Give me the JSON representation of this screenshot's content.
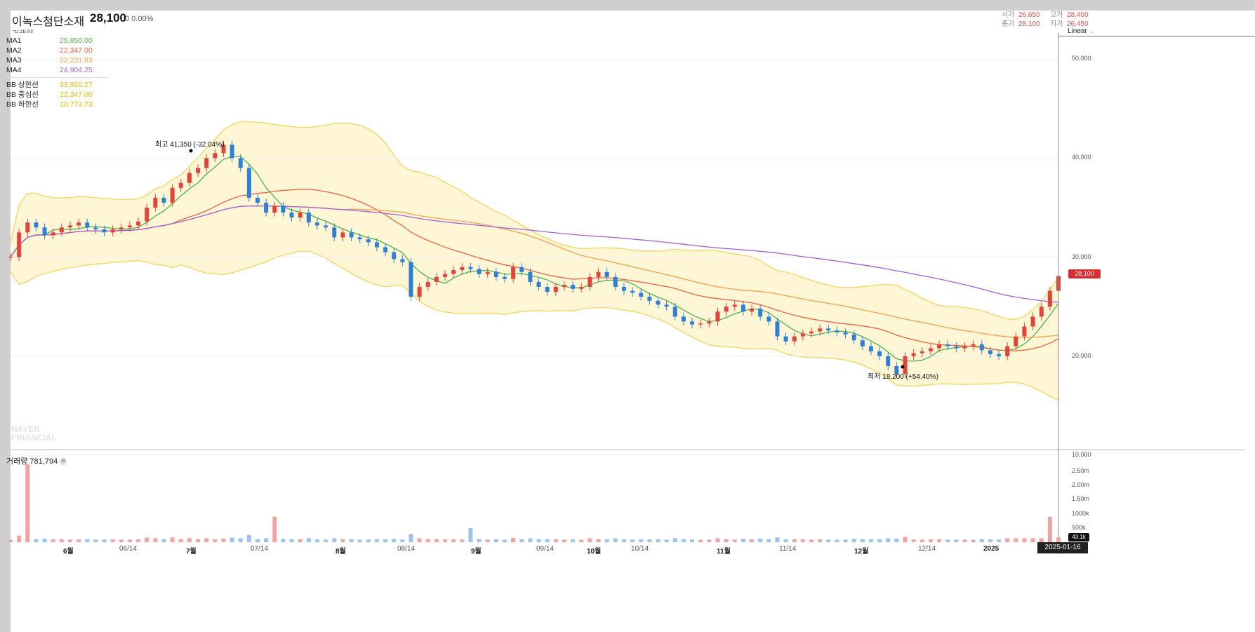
{
  "header": {
    "stock_name": "이녹스첨단소재",
    "price": "28,100",
    "change": "0 0.00%",
    "volume_label": "거래량",
    "volume_value": "-",
    "ohlc": {
      "open_label": "시가",
      "open": "26,650",
      "high_label": "고가",
      "high": "28,400",
      "close_label": "종가",
      "close": "28,100",
      "low_label": "저가",
      "low": "26,450"
    },
    "scale_label": "Linear",
    "scale_chevron": "chevron-down-icon"
  },
  "legend": [
    {
      "label": "MA1",
      "value": "25,850.00",
      "color": "#4caf50"
    },
    {
      "label": "MA2",
      "value": "22,347.00",
      "color": "#e8623a"
    },
    {
      "label": "MA3",
      "value": "22,231.83",
      "color": "#f0a04b"
    },
    {
      "label": "MA4",
      "value": "24,904.25",
      "color": "#a35ed6"
    }
  ],
  "legend_bb": [
    {
      "label": "BB 상한선",
      "value": "33,920.27",
      "color": "#e6b800"
    },
    {
      "label": "BB 중심선",
      "value": "22,347.00",
      "color": "#e6b800"
    },
    {
      "label": "BB 하한선",
      "value": "10,773.73",
      "color": "#e6b800"
    }
  ],
  "annotations": {
    "high": "최고 41,350 (-32.04%)",
    "low": "최저 18,200 (+54.40%)"
  },
  "price_tag": "28,100",
  "volume_panel": {
    "title": "거래량 781,794",
    "last_tag": "43.1k",
    "date_tag": "2025-01-16"
  },
  "watermark": [
    "NAVER",
    "FINANCIAL"
  ],
  "colors": {
    "up": "#e0453a",
    "down": "#2f7fd4",
    "vol_up": "#f0a3a3",
    "vol_down": "#9cc3ee",
    "band": "#fff6d6",
    "band_line": "#f4d35e"
  },
  "chart_data": {
    "type": "line",
    "title": "",
    "xlabel": "",
    "ylabel": "",
    "ylim": [
      10000,
      52000
    ],
    "y_ticks": [
      "50,000",
      "40,000",
      "30,000",
      "20,000",
      "10,000"
    ],
    "x_ticks": [
      {
        "label": "6월",
        "major": true
      },
      {
        "label": "06/14",
        "major": false
      },
      {
        "label": "7월",
        "major": true
      },
      {
        "label": "07/14",
        "major": false
      },
      {
        "label": "8월",
        "major": true
      },
      {
        "label": "08/14",
        "major": false
      },
      {
        "label": "9월",
        "major": true
      },
      {
        "label": "09/14",
        "major": false
      },
      {
        "label": "10월",
        "major": true
      },
      {
        "label": "10/14",
        "major": false
      },
      {
        "label": "11월",
        "major": true
      },
      {
        "label": "11/14",
        "major": false
      },
      {
        "label": "12월",
        "major": true
      },
      {
        "label": "12/14",
        "major": false
      },
      {
        "label": "2025",
        "major": true
      }
    ],
    "volume_ticks": [
      "2.50m",
      "2.00m",
      "1.50m",
      "1000k",
      "500k"
    ],
    "close_series": [
      30000,
      32500,
      33500,
      33000,
      32200,
      32500,
      33000,
      33200,
      33500,
      33000,
      32800,
      32500,
      32800,
      33000,
      33200,
      33600,
      35000,
      36000,
      35500,
      37000,
      37500,
      38500,
      39000,
      40000,
      40500,
      41350,
      40000,
      39000,
      36000,
      35500,
      34500,
      35200,
      34500,
      34000,
      34500,
      33500,
      33200,
      33000,
      32000,
      32500,
      32000,
      31800,
      31500,
      31000,
      30500,
      29800,
      29500,
      26000,
      27000,
      27500,
      28000,
      28300,
      28700,
      29000,
      28800,
      28300,
      28500,
      28000,
      27800,
      29000,
      28500,
      27500,
      27000,
      26500,
      27000,
      27200,
      26800,
      27000,
      28000,
      28500,
      28000,
      27000,
      26600,
      26400,
      26000,
      25600,
      25200,
      25000,
      24000,
      23500,
      23200,
      23300,
      23500,
      24500,
      25000,
      25200,
      24500,
      24800,
      24000,
      23500,
      22000,
      21500,
      22000,
      22300,
      22500,
      22800,
      22600,
      22400,
      22200,
      21600,
      21000,
      20500,
      20000,
      19000,
      18200,
      20000,
      20300,
      20500,
      20800,
      21200,
      21000,
      20800,
      21000,
      21200,
      20600,
      20200,
      20000,
      21000,
      22000,
      23000,
      24000,
      25000,
      26600,
      28100
    ],
    "series": [
      {
        "name": "MA1",
        "values": [
          25850
        ]
      },
      {
        "name": "MA2",
        "values": [
          22347
        ]
      },
      {
        "name": "MA3",
        "values": [
          22231.83
        ]
      },
      {
        "name": "MA4",
        "values": [
          24904.25
        ]
      },
      {
        "name": "BB 상한선",
        "values": [
          33920.27
        ]
      },
      {
        "name": "BB 중심선",
        "values": [
          22347
        ]
      },
      {
        "name": "BB 하한선",
        "values": [
          10773.73
        ]
      }
    ],
    "legend": "top-left",
    "grid": true
  }
}
